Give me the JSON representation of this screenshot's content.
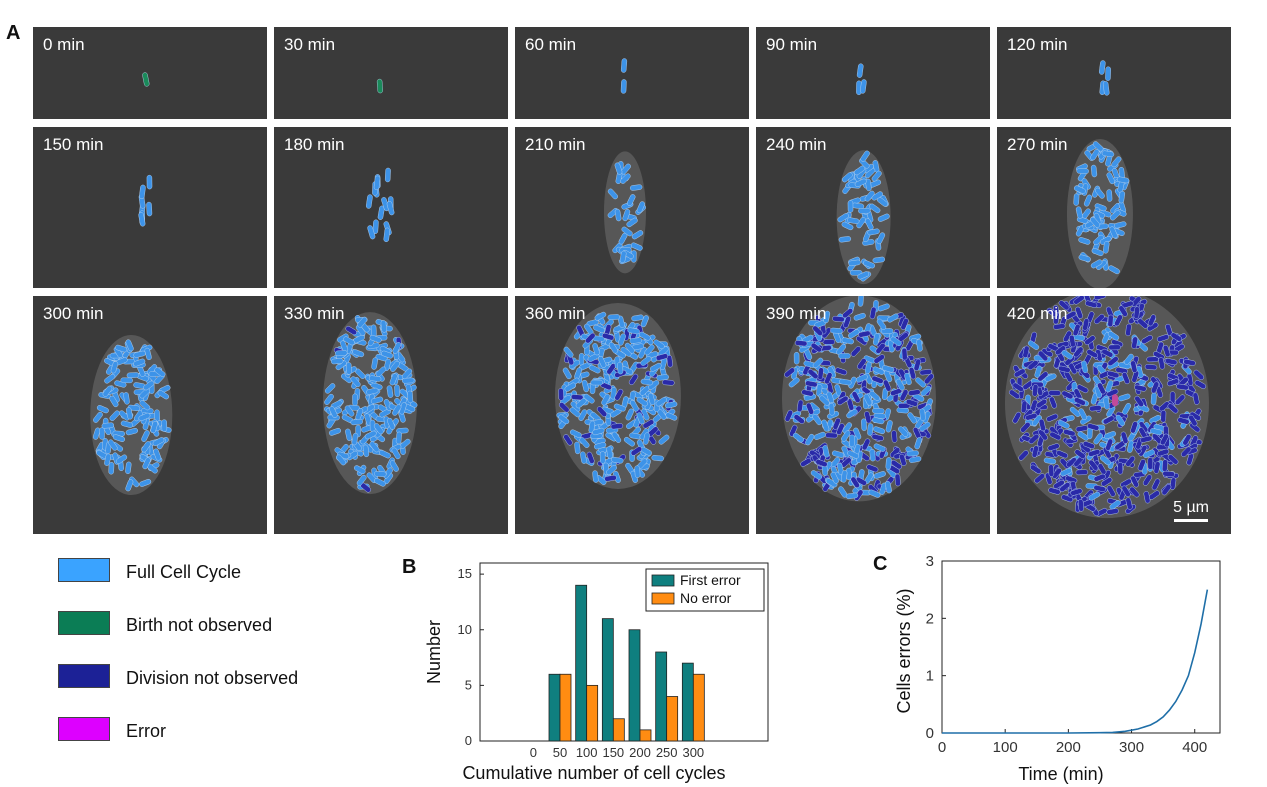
{
  "panels": {
    "a": "A",
    "b": "B",
    "c": "C"
  },
  "frames": {
    "labels": [
      "0 min",
      "30 min",
      "60 min",
      "90 min",
      "120 min",
      "150 min",
      "180 min",
      "210 min",
      "240 min",
      "270 min",
      "300 min",
      "330 min",
      "360 min",
      "390 min",
      "420 min"
    ]
  },
  "scale_bar": "5 µm",
  "legend": [
    {
      "label": "Full Cell Cycle",
      "color": "#3aa3ff"
    },
    {
      "label": "Birth not observed",
      "color": "#0b7d55"
    },
    {
      "label": "Division not observed",
      "color": "#1c2196"
    },
    {
      "label": "Error",
      "color": "#dd00ff"
    }
  ],
  "chart_data": [
    {
      "type": "bar",
      "panel": "B",
      "categories": [
        0,
        50,
        100,
        150,
        200,
        250,
        300
      ],
      "series": [
        {
          "name": "First error",
          "color": "#0f7f7f",
          "values": [
            0,
            6,
            14,
            11,
            10,
            8,
            7
          ]
        },
        {
          "name": "No error",
          "color": "#ff8c12",
          "values": [
            0,
            6,
            5,
            2,
            1,
            4,
            6
          ]
        }
      ],
      "xlabel": "Cumulative number of cell cycles",
      "ylabel": "Number",
      "yticks": [
        0,
        5,
        10,
        15
      ],
      "ylim": [
        0,
        16
      ],
      "legend_position": "top-right"
    },
    {
      "type": "line",
      "panel": "C",
      "x": [
        0,
        50,
        100,
        150,
        200,
        250,
        270,
        290,
        310,
        330,
        340,
        350,
        360,
        370,
        380,
        390,
        400,
        410,
        420
      ],
      "y": [
        0,
        0,
        0,
        0,
        0,
        0.005,
        0.01,
        0.03,
        0.07,
        0.14,
        0.2,
        0.28,
        0.4,
        0.55,
        0.75,
        1.0,
        1.4,
        1.9,
        2.5
      ],
      "series_color": "#1f6fa8",
      "xlabel": "Time (min)",
      "ylabel": "Cells errors (%)",
      "xticks": [
        0,
        100,
        200,
        300,
        400
      ],
      "yticks": [
        0,
        1,
        2,
        3
      ],
      "xlim": [
        0,
        440
      ],
      "ylim": [
        0,
        3
      ]
    }
  ]
}
